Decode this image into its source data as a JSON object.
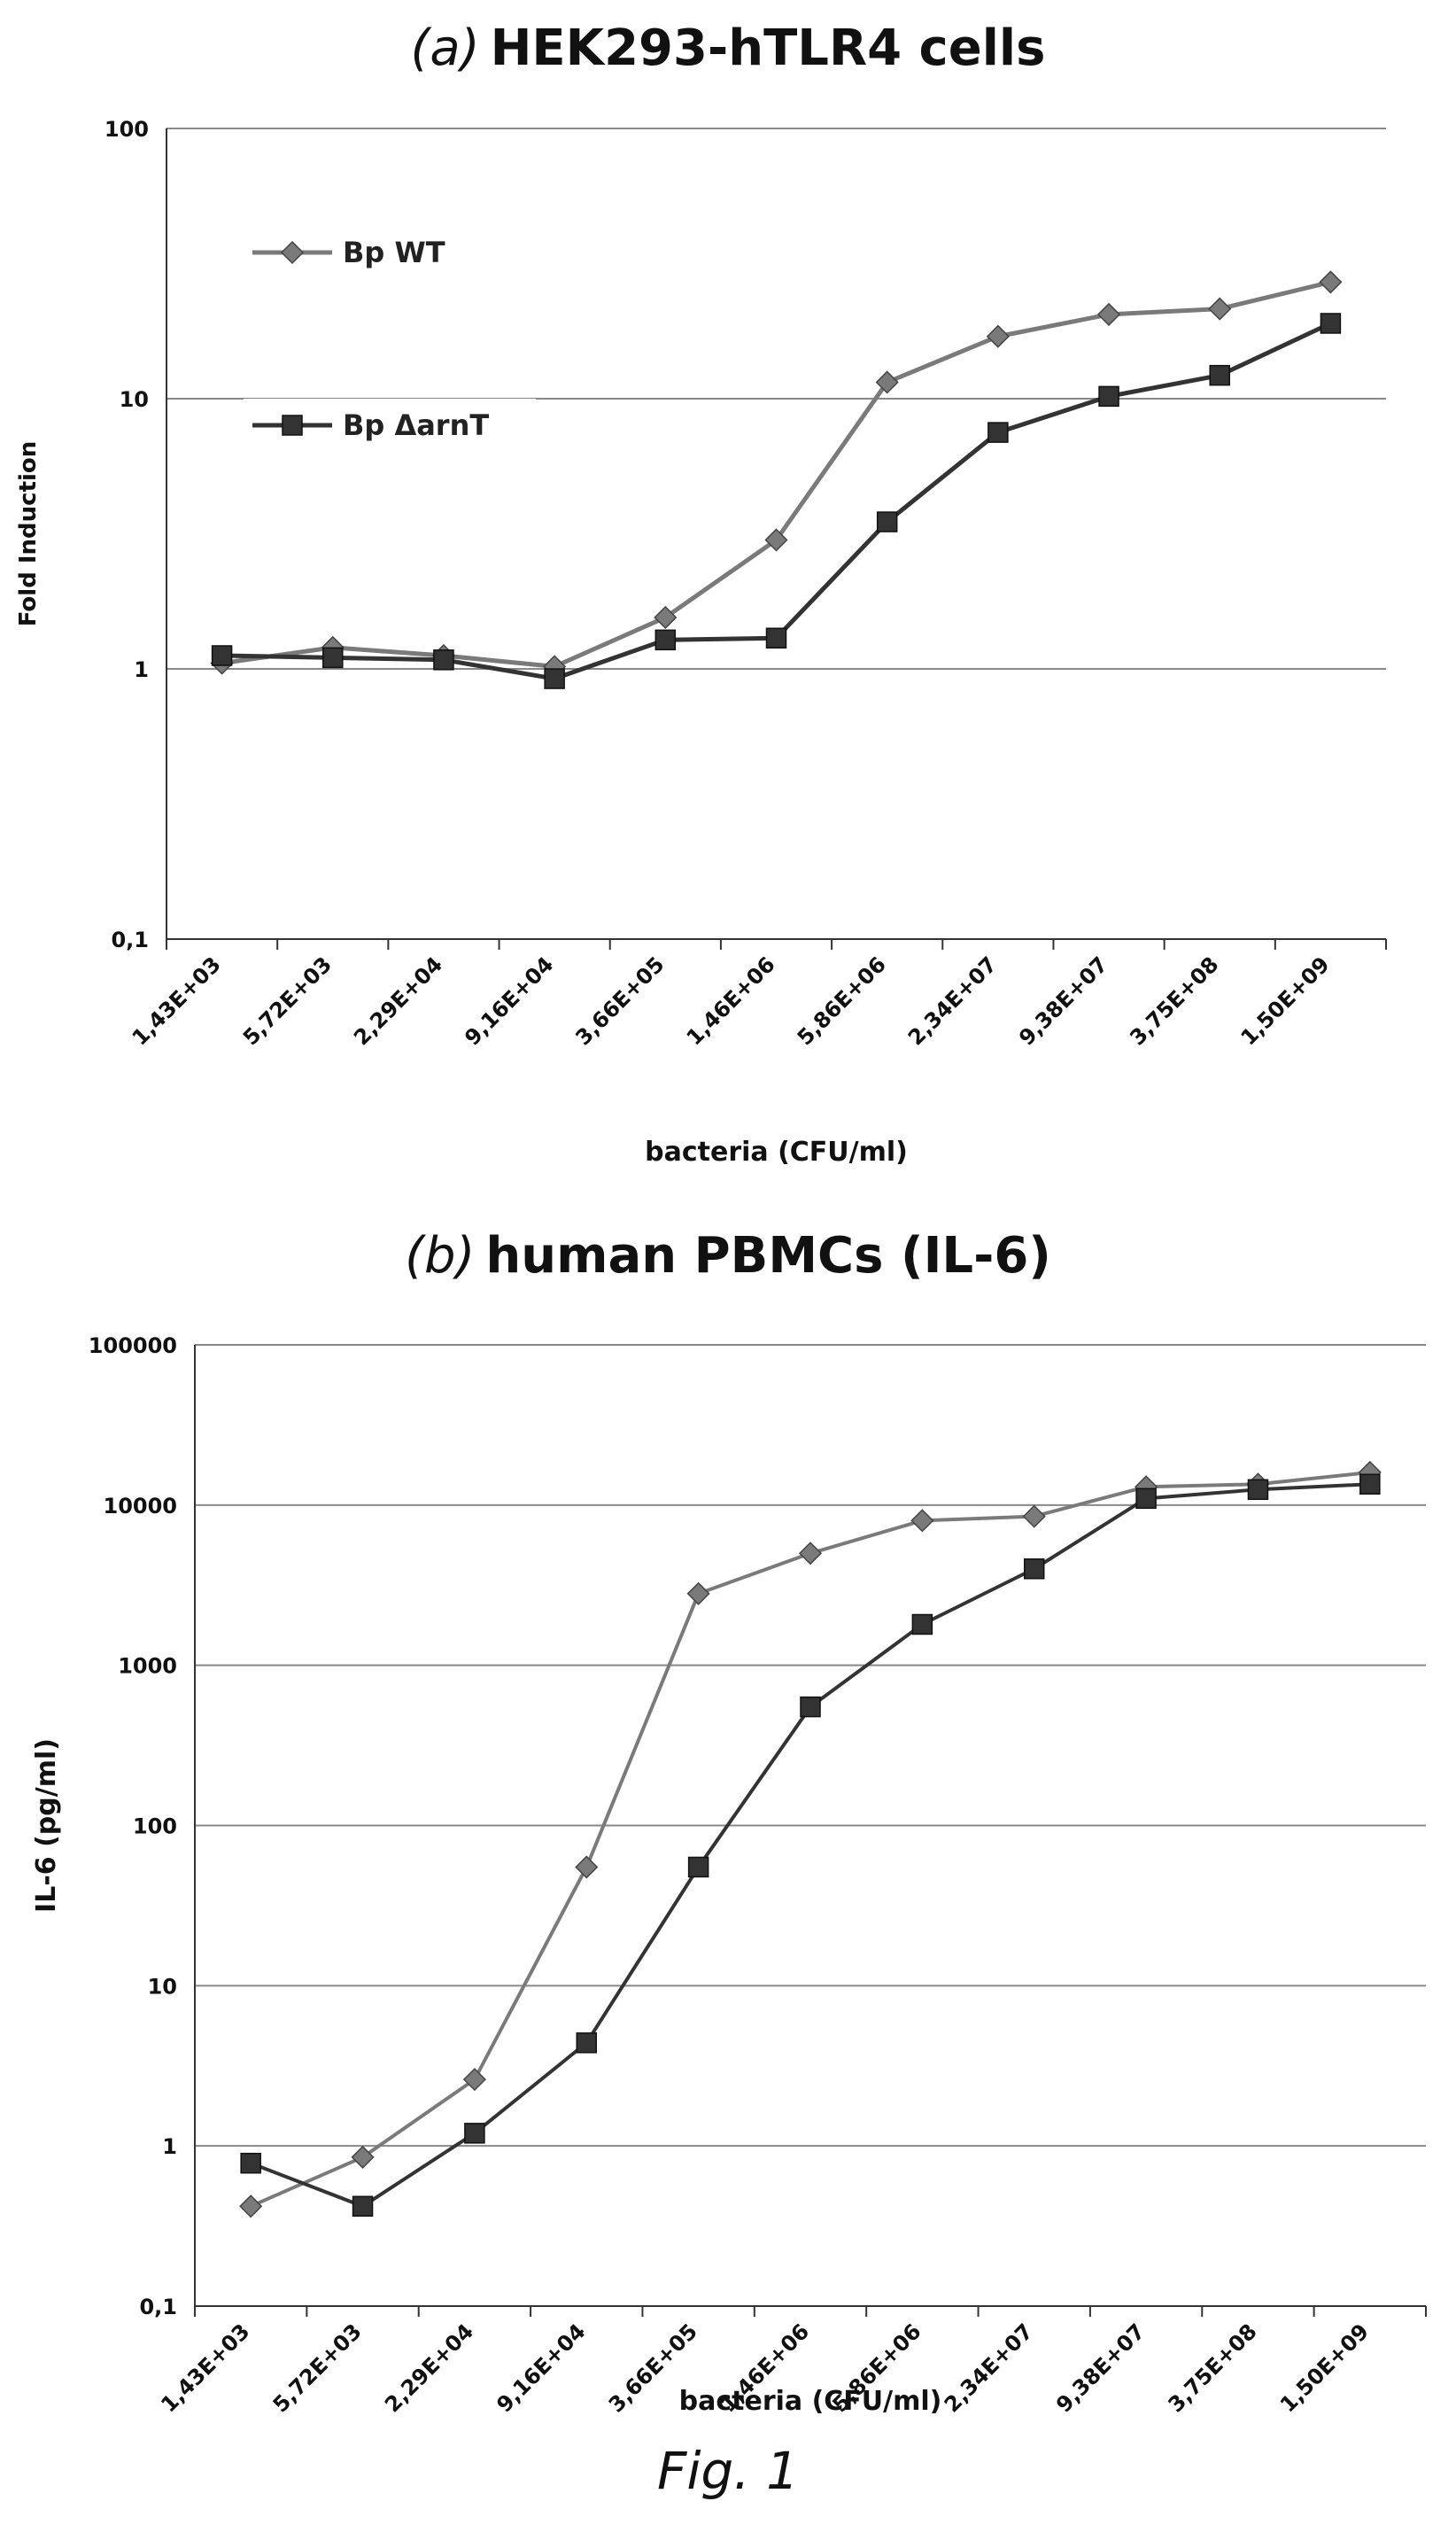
{
  "chart_data": [
    {
      "type": "line",
      "title_lead": "(a)",
      "title_main": "HEK293-hTLR4  cells",
      "xlabel": "bacteria (CFU/ml)",
      "ylabel": "Fold Induction",
      "yscale": "log",
      "ylim": [
        0.1,
        100
      ],
      "yticks": [
        "0,1",
        "1",
        "10",
        "100"
      ],
      "categories": [
        "1,43E+03",
        "5,72E+03",
        "2,29E+04",
        "9,16E+04",
        "3,66E+05",
        "1,46E+06",
        "5,86E+06",
        "2,34E+07",
        "9,38E+07",
        "3,75E+08",
        "1,50E+09"
      ],
      "grid": "horizontal",
      "legend_position": "upper-left",
      "series": [
        {
          "name": "Bp WT",
          "marker": "diamond",
          "color": "#7a7a7a",
          "values": [
            1.05,
            1.2,
            1.12,
            1.02,
            1.55,
            3.0,
            11.5,
            17.0,
            20.5,
            21.5,
            27.0
          ]
        },
        {
          "name": "Bp ΔarnT",
          "marker": "square",
          "color": "#333333",
          "values": [
            1.12,
            1.1,
            1.08,
            0.92,
            1.28,
            1.3,
            3.5,
            7.5,
            10.2,
            12.2,
            19.0
          ]
        }
      ]
    },
    {
      "type": "line",
      "title_lead": "(b)",
      "title_main": "human PBMCs (IL-6)",
      "xlabel": "bacteria (CFU/ml)",
      "ylabel": "IL-6 (pg/ml)",
      "yscale": "log",
      "ylim": [
        0.1,
        100000
      ],
      "yticks": [
        "0,1",
        "1",
        "10",
        "100",
        "1000",
        "10000",
        "100000"
      ],
      "categories": [
        "1,43E+03",
        "5,72E+03",
        "2,29E+04",
        "9,16E+04",
        "3,66E+05",
        "1,46E+06",
        "5,86E+06",
        "2,34E+07",
        "9,38E+07",
        "3,75E+08",
        "1,50E+09"
      ],
      "grid": "horizontal",
      "series": [
        {
          "name": "",
          "marker": "diamond",
          "color": "#7a7a7a",
          "values": [
            0.42,
            0.85,
            2.6,
            55,
            2800,
            5000,
            8000,
            8500,
            13000,
            13500,
            16000
          ]
        },
        {
          "name": "",
          "marker": "square",
          "color": "#333333",
          "values": [
            0.78,
            0.42,
            1.2,
            4.4,
            55,
            550,
            1800,
            4000,
            11000,
            12500,
            13500
          ]
        }
      ]
    }
  ],
  "figure_caption": "Fig. 1"
}
